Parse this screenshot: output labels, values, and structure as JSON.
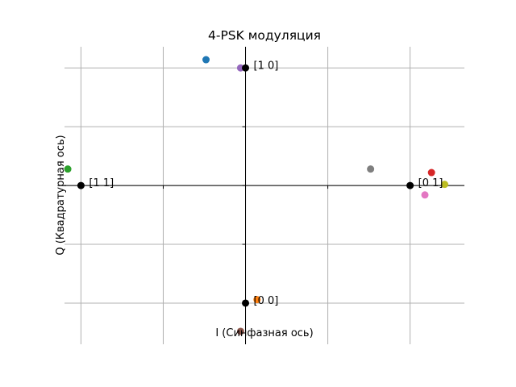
{
  "chart_data": {
    "type": "scatter",
    "title": "4-PSK модуляция",
    "xlabel": "I (Синфазная ось)",
    "ylabel": "Q (Квадратурная ось)",
    "xlim": [
      -1.1,
      1.33
    ],
    "ylim": [
      -1.35,
      1.18
    ],
    "grid": true,
    "grid_x": [
      -1,
      -0.5,
      0,
      0.5,
      1
    ],
    "grid_y": [
      -1,
      -0.5,
      0,
      0.5,
      1
    ],
    "spines": "center",
    "constellation": [
      {
        "i": 0,
        "q": 1,
        "label": "[1 0]"
      },
      {
        "i": -1,
        "q": 0,
        "label": "[1 1]"
      },
      {
        "i": 0,
        "q": -1,
        "label": "[0 0]"
      },
      {
        "i": 1,
        "q": 0,
        "label": "[0 1]"
      }
    ],
    "received": [
      {
        "i": -0.24,
        "q": 1.07,
        "color": "#1f77b4"
      },
      {
        "i": 0.07,
        "q": -0.97,
        "color": "#ff7f0e"
      },
      {
        "i": -1.08,
        "q": 0.14,
        "color": "#2ca02c"
      },
      {
        "i": 1.13,
        "q": 0.11,
        "color": "#d62728"
      },
      {
        "i": -0.03,
        "q": 1.0,
        "color": "#9467bd"
      },
      {
        "i": -0.03,
        "q": -1.24,
        "color": "#8c564b"
      },
      {
        "i": 1.09,
        "q": -0.08,
        "color": "#e377c2"
      },
      {
        "i": 0.76,
        "q": 0.14,
        "color": "#7f7f7f"
      },
      {
        "i": 1.21,
        "q": 0.01,
        "color": "#bcbd22"
      }
    ],
    "constellation_color": "#000000",
    "grid_color": "#b0b0b0"
  }
}
